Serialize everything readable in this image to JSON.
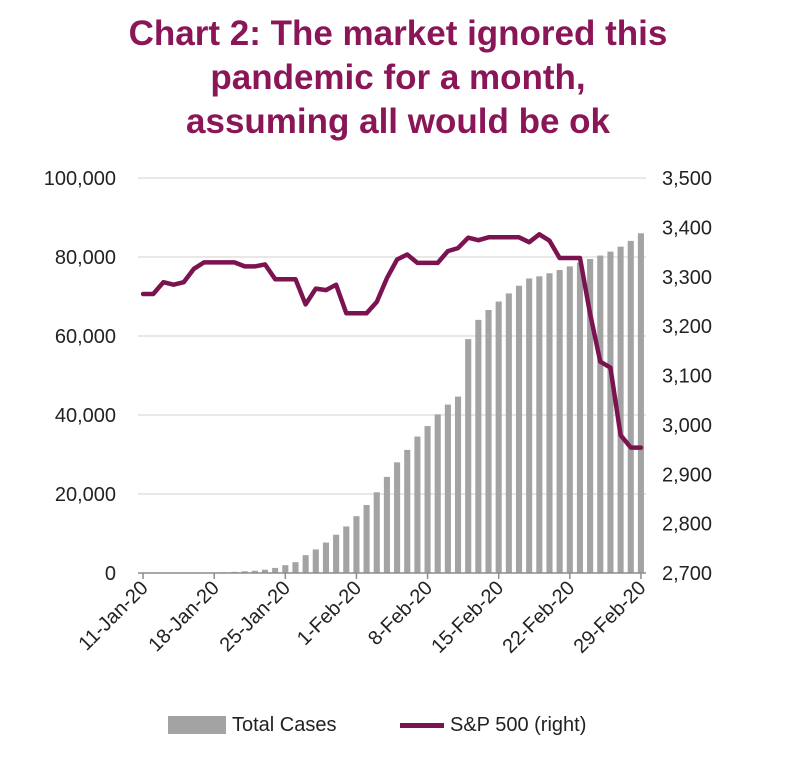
{
  "title_lines": [
    "Chart 2: The market ignored this",
    "pandemic for a month,",
    "assuming all would be ok"
  ],
  "colors": {
    "title": "#8a1557",
    "bars": "#a3a3a3",
    "line": "#7b1350",
    "axis": "#8c8c8c",
    "text": "#222222"
  },
  "chart_data": {
    "type": "bar+line",
    "title": "Chart 2: The market ignored this pandemic for a month, assuming all would be ok",
    "categories": [
      "11-Jan-20",
      "12-Jan-20",
      "13-Jan-20",
      "14-Jan-20",
      "15-Jan-20",
      "16-Jan-20",
      "17-Jan-20",
      "18-Jan-20",
      "19-Jan-20",
      "20-Jan-20",
      "21-Jan-20",
      "22-Jan-20",
      "23-Jan-20",
      "24-Jan-20",
      "25-Jan-20",
      "26-Jan-20",
      "27-Jan-20",
      "28-Jan-20",
      "29-Jan-20",
      "30-Jan-20",
      "31-Jan-20",
      "1-Feb-20",
      "2-Feb-20",
      "3-Feb-20",
      "4-Feb-20",
      "5-Feb-20",
      "6-Feb-20",
      "7-Feb-20",
      "8-Feb-20",
      "9-Feb-20",
      "10-Feb-20",
      "11-Feb-20",
      "12-Feb-20",
      "13-Feb-20",
      "14-Feb-20",
      "15-Feb-20",
      "16-Feb-20",
      "17-Feb-20",
      "18-Feb-20",
      "19-Feb-20",
      "20-Feb-20",
      "21-Feb-20",
      "22-Feb-20",
      "23-Feb-20",
      "24-Feb-20",
      "25-Feb-20",
      "26-Feb-20",
      "27-Feb-20",
      "28-Feb-20",
      "29-Feb-20"
    ],
    "x_tick_labels": [
      "11-Jan-20",
      "18-Jan-20",
      "25-Jan-20",
      "1-Feb-20",
      "8-Feb-20",
      "15-Feb-20",
      "22-Feb-20",
      "29-Feb-20"
    ],
    "series": [
      {
        "name": "Total Cases",
        "type": "bar",
        "axis": "left",
        "values": [
          41,
          41,
          41,
          41,
          41,
          45,
          62,
          121,
          198,
          291,
          440,
          571,
          830,
          1287,
          1975,
          2744,
          4515,
          5974,
          7711,
          9692,
          11791,
          14380,
          17205,
          20438,
          24324,
          28018,
          31161,
          34546,
          37198,
          40171,
          42638,
          44653,
          59210,
          64086,
          66578,
          68722,
          70778,
          72724,
          74567,
          75109,
          75883,
          76704,
          77622,
          78582,
          79490,
          80363,
          81364,
          82617,
          84083,
          85996
        ]
      },
      {
        "name": "S&P 500 (right)",
        "type": "line",
        "axis": "right",
        "values": [
          3265,
          3265,
          3289,
          3284,
          3289,
          3316,
          3329,
          3329,
          3329,
          3329,
          3321,
          3321,
          3325,
          3295,
          3295,
          3295,
          3244,
          3276,
          3273,
          3284,
          3226,
          3226,
          3226,
          3249,
          3297,
          3335,
          3345,
          3328,
          3328,
          3328,
          3352,
          3358,
          3379,
          3374,
          3380,
          3380,
          3380,
          3380,
          3370,
          3386,
          3373,
          3338,
          3338,
          3338,
          3225,
          3128,
          3116,
          2979,
          2954,
          2954
        ]
      }
    ],
    "y_left": {
      "min": 0,
      "max": 100000,
      "ticks": [
        "0",
        "20,000",
        "40,000",
        "60,000",
        "80,000",
        "100,000"
      ]
    },
    "y_right": {
      "min": 2700,
      "max": 3500,
      "ticks": [
        "2,700",
        "2,800",
        "2,900",
        "3,000",
        "3,100",
        "3,200",
        "3,300",
        "3,400",
        "3,500"
      ]
    },
    "grid": true
  },
  "legend": {
    "bars_label": "Total Cases",
    "line_label": "S&P 500 (right)"
  }
}
